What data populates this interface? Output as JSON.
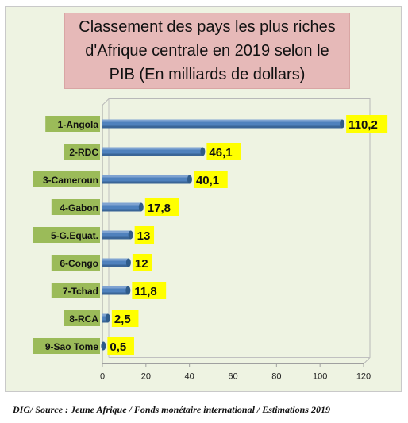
{
  "chart_data": {
    "type": "bar",
    "orientation": "horizontal",
    "title": "Classement des pays les plus riches d'Afrique centrale en 2019 selon le PIB (En milliards de dollars)",
    "categories": [
      "1-Angola",
      "2-RDC",
      "3-Cameroun",
      "4-Gabon",
      "5-G.Equat.",
      "6-Congo",
      "7-Tchad",
      "8-RCA",
      "9-Sao Tome"
    ],
    "values": [
      110.2,
      46.1,
      40.1,
      17.8,
      13,
      12,
      11.8,
      2.5,
      0.5
    ],
    "data_labels": [
      "110,2",
      "46,1",
      "40,1",
      "17,8",
      "13",
      "12",
      "11,8",
      "2,5",
      "0,5"
    ],
    "xticks": [
      "0",
      "20",
      "40",
      "60",
      "80",
      "100",
      "120"
    ],
    "xlim": [
      0,
      120
    ],
    "grid": false,
    "legend": "none",
    "bar_color": "#4f81bd",
    "label_bg_color": "#ffff00",
    "category_bg_color": "#9bbb59"
  },
  "source": "DIG/ Source : Jeune Afrique / Fonds monétaire international / Estimations 2019"
}
